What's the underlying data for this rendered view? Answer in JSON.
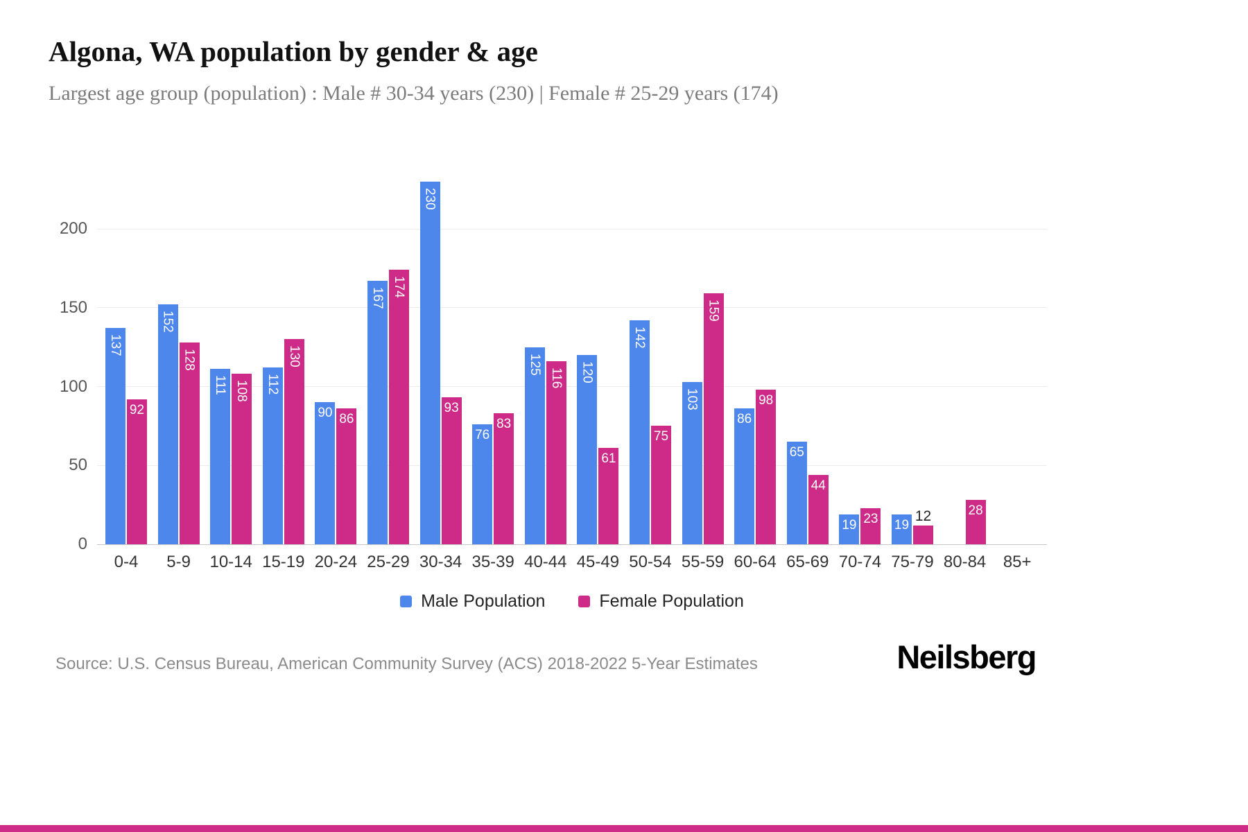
{
  "header": {
    "title": "Algona, WA population by gender & age",
    "subtitle": "Largest age group (population) : Male # 30-34 years (230) | Female # 25-29 years (174)"
  },
  "chart_data": {
    "type": "bar",
    "title": "Algona, WA population by gender & age",
    "categories": [
      "0-4",
      "5-9",
      "10-14",
      "15-19",
      "20-24",
      "25-29",
      "30-34",
      "35-39",
      "40-44",
      "45-49",
      "50-54",
      "55-59",
      "60-64",
      "65-69",
      "70-74",
      "75-79",
      "80-84",
      "85+"
    ],
    "series": [
      {
        "name": "Male Population",
        "color": "#4e87ec",
        "values": [
          137,
          152,
          111,
          112,
          90,
          167,
          230,
          76,
          125,
          120,
          142,
          103,
          86,
          65,
          19,
          19,
          0,
          0
        ]
      },
      {
        "name": "Female Population",
        "color": "#ce2a88",
        "values": [
          92,
          128,
          108,
          130,
          86,
          174,
          93,
          83,
          116,
          61,
          75,
          159,
          98,
          44,
          23,
          12,
          28,
          0
        ]
      }
    ],
    "xlabel": "",
    "ylabel": "",
    "ylim": [
      0,
      230
    ],
    "yticks": [
      0,
      50,
      100,
      150,
      200
    ],
    "grid": "horizontal",
    "legend_position": "bottom",
    "bar_value_labels": true
  },
  "legend": {
    "items": [
      {
        "label": "Male Population",
        "color": "#4e87ec"
      },
      {
        "label": "Female Population",
        "color": "#ce2a88"
      }
    ]
  },
  "footer": {
    "source": "Source: U.S. Census Bureau, American Community Survey (ACS) 2018-2022 5-Year Estimates",
    "brand": "Neilsberg"
  },
  "colors": {
    "male": "#4e87ec",
    "female": "#ce2a88",
    "grid": "#ececec",
    "axis_line": "#c6c6c6",
    "tick_text": "#555555",
    "subtitle_text": "#7b7b7b",
    "background": "#ffffff"
  }
}
